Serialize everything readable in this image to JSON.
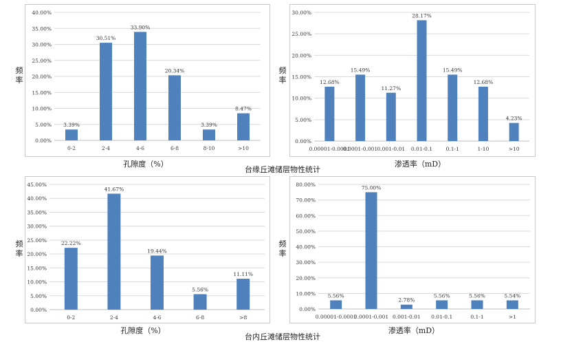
{
  "captions": {
    "top": "台缘丘滩储层物性统计",
    "bottom": "台内丘滩储层物性统计"
  },
  "colors": {
    "bar": "#4f81bd",
    "grid": "#d9d9d9"
  },
  "chart_data": [
    {
      "type": "bar",
      "xlabel": "孔隙度（%）",
      "ylabel": "频率",
      "ylim": [
        0,
        40
      ],
      "yticks": [
        "0.00%",
        "5.00%",
        "10.00%",
        "15.00%",
        "20.00%",
        "25.00%",
        "30.00%",
        "35.00%",
        "40.00%"
      ],
      "categories": [
        "0-2",
        "2-4",
        "4-6",
        "6-8",
        "8-10",
        ">10"
      ],
      "values": [
        3.39,
        30.51,
        33.9,
        20.34,
        3.39,
        8.47
      ],
      "labels": [
        "3.39%",
        "30.51%",
        "33.90%",
        "20.34%",
        "3.39%",
        "8.47%"
      ]
    },
    {
      "type": "bar",
      "xlabel": "渗透率（mD）",
      "ylabel": "频率",
      "ylim": [
        0,
        30
      ],
      "yticks": [
        "0.00%",
        "5.00%",
        "10.00%",
        "15.00%",
        "20.00%",
        "25.00%",
        "30.00%"
      ],
      "categories": [
        "0.00001-0.0001",
        "0.0001-0.001",
        "0.001-0.01",
        "0.01-0.1",
        "0.1-1",
        "1-10",
        ">10"
      ],
      "values": [
        12.68,
        15.49,
        11.27,
        28.17,
        15.49,
        12.68,
        4.23
      ],
      "labels": [
        "12.68%",
        "15.49%",
        "11.27%",
        "28.17%",
        "15.49%",
        "12.68%",
        "4.23%"
      ]
    },
    {
      "type": "bar",
      "xlabel": "孔隙度（%）",
      "ylabel": "频率",
      "ylim": [
        0,
        45
      ],
      "yticks": [
        "0.00%",
        "5.00%",
        "10.00%",
        "15.00%",
        "20.00%",
        "25.00%",
        "30.00%",
        "35.00%",
        "40.00%",
        "45.00%"
      ],
      "categories": [
        "0-2",
        "2-4",
        "4-6",
        "6-8",
        ">8"
      ],
      "values": [
        22.22,
        41.67,
        19.44,
        5.56,
        11.11
      ],
      "labels": [
        "22.22%",
        "41.67%",
        "19.44%",
        "5.56%",
        "11.11%"
      ]
    },
    {
      "type": "bar",
      "xlabel": "渗透率（mD）",
      "ylabel": "频率",
      "ylim": [
        0,
        80
      ],
      "yticks": [
        "0.00%",
        "10.00%",
        "20.00%",
        "30.00%",
        "40.00%",
        "50.00%",
        "60.00%",
        "70.00%",
        "80.00%"
      ],
      "categories": [
        "0.00001-0.0001",
        "0.0001-0.001",
        "0.001-0.01",
        "0.01-0.1",
        "0.1-1",
        ">1"
      ],
      "values": [
        5.56,
        75.0,
        2.78,
        5.56,
        5.56,
        5.54
      ],
      "labels": [
        "5.56%",
        "75.00%",
        "2.78%",
        "5.56%",
        "5.56%",
        "5.54%"
      ]
    }
  ]
}
